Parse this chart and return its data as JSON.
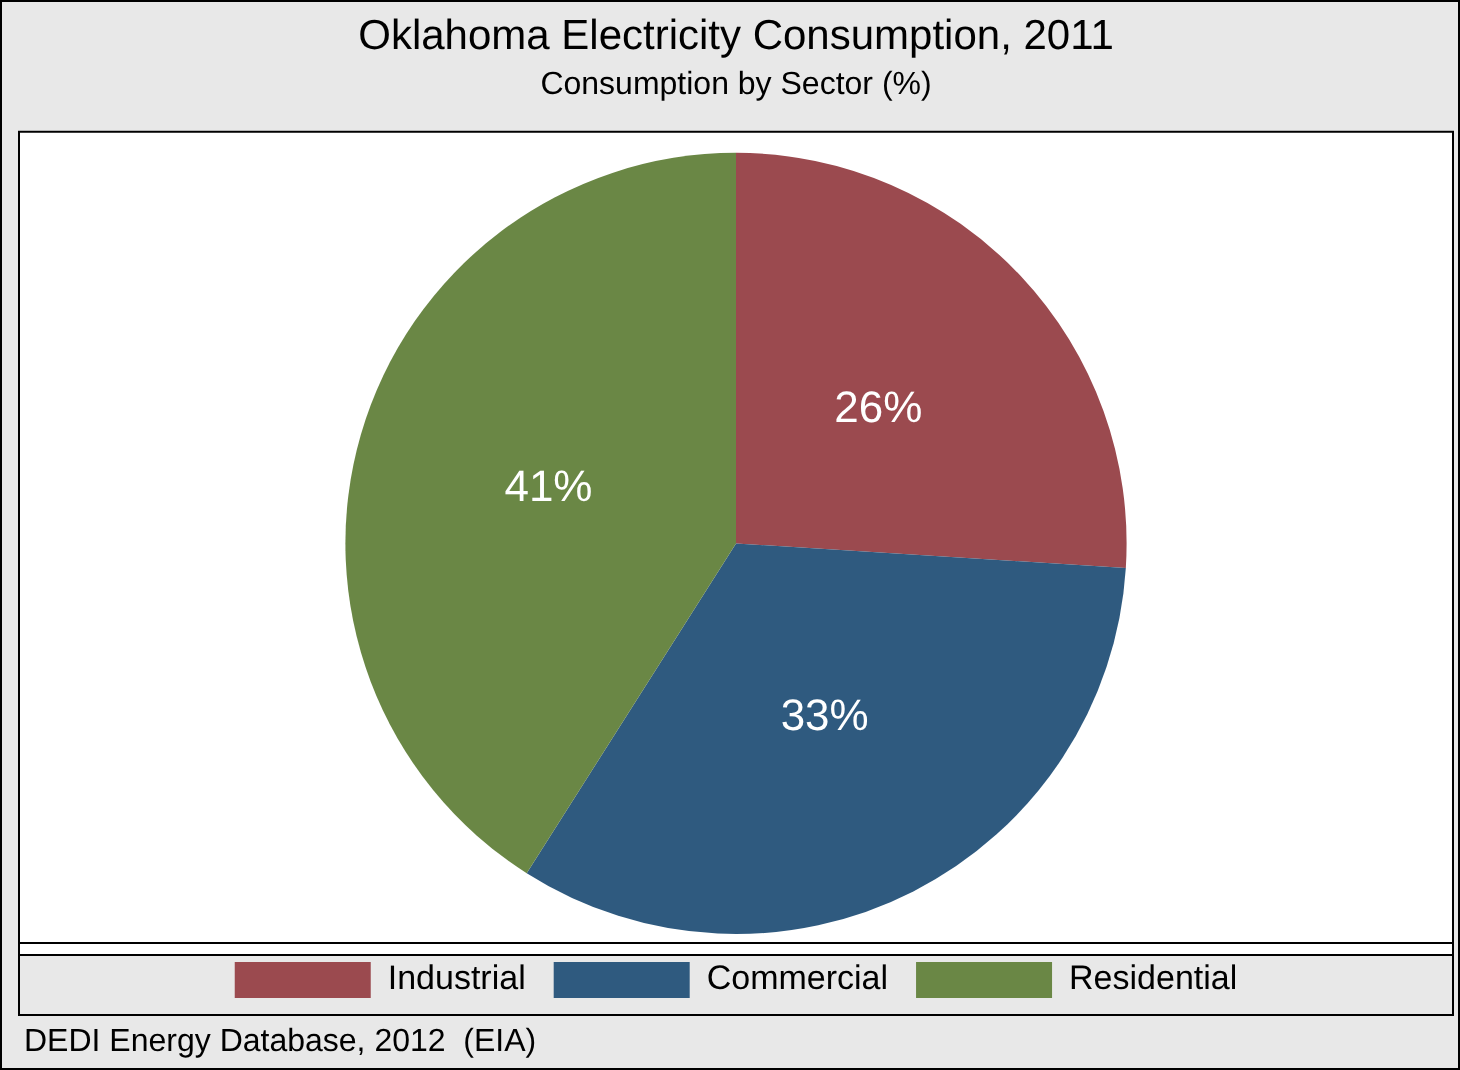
{
  "chart_data": {
    "type": "pie",
    "title": "Oklahoma Electricity Consumption, 2011",
    "subtitle": "Consumption by Sector (%)",
    "categories": [
      "Industrial",
      "Commercial",
      "Residential"
    ],
    "values": [
      26,
      33,
      41
    ],
    "colors": [
      "#9b4a4f",
      "#2f5a7f",
      "#6a8745"
    ],
    "value_labels": [
      "26%",
      "33%",
      "41%"
    ],
    "legend": "bottom",
    "annotations": [
      "DEDI Energy Database, 2012  (EIA)"
    ]
  }
}
